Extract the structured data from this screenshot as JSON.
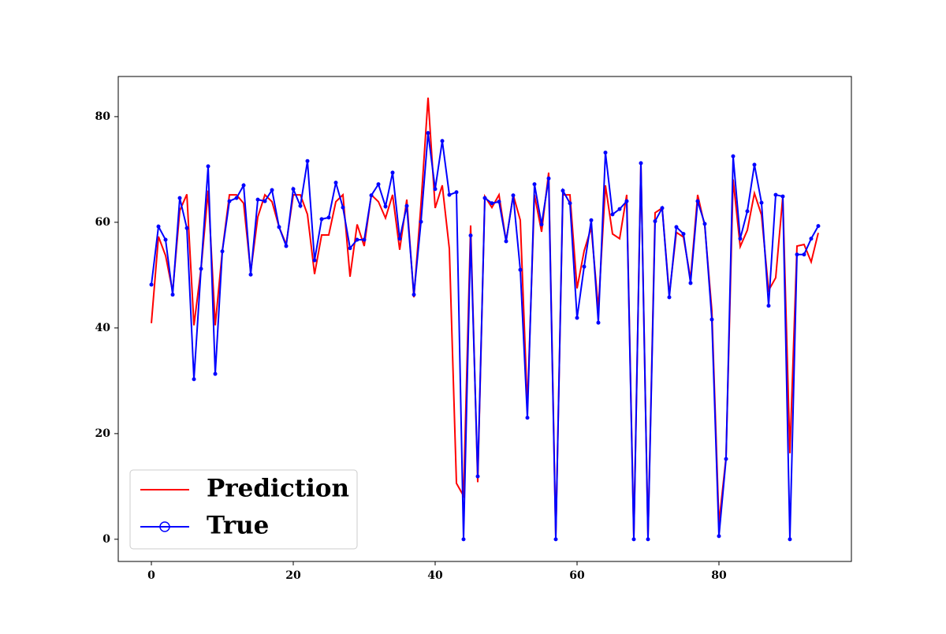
{
  "chart_data": {
    "type": "line",
    "x": [
      0,
      1,
      2,
      3,
      4,
      5,
      6,
      7,
      8,
      9,
      10,
      11,
      12,
      13,
      14,
      15,
      16,
      17,
      18,
      19,
      20,
      21,
      22,
      23,
      24,
      25,
      26,
      27,
      28,
      29,
      30,
      31,
      32,
      33,
      34,
      35,
      36,
      37,
      38,
      39,
      40,
      41,
      42,
      43,
      44,
      45,
      46,
      47,
      48,
      49,
      50,
      51,
      52,
      53,
      54,
      55,
      56,
      57,
      58,
      59,
      60,
      61,
      62,
      63,
      64,
      65,
      66,
      67,
      68,
      69,
      70,
      71,
      72,
      73,
      74,
      75,
      76,
      77,
      78,
      79,
      80,
      81,
      82,
      83,
      84,
      85,
      86,
      87,
      88,
      89,
      90,
      91,
      92,
      93,
      94
    ],
    "series": [
      {
        "name": "Prediction",
        "color": "#ff0000",
        "marker": false,
        "values": [
          40.9,
          57.3,
          53.7,
          46.9,
          62.2,
          65.3,
          40.5,
          51.2,
          66.0,
          40.5,
          54.6,
          65.2,
          65.2,
          63.6,
          50.6,
          61.0,
          65.2,
          63.9,
          59.1,
          55.8,
          65.2,
          65.2,
          61.5,
          50.2,
          57.6,
          57.6,
          63.9,
          65.2,
          49.7,
          59.6,
          55.5,
          65.2,
          63.9,
          60.8,
          65.2,
          54.8,
          64.3,
          45.8,
          63.4,
          83.6,
          62.7,
          67.0,
          55.0,
          10.6,
          8.2,
          59.4,
          10.8,
          64.9,
          62.8,
          65.2,
          56.4,
          65.2,
          60.4,
          25.0,
          65.2,
          58.2,
          69.4,
          0.5,
          65.2,
          65.2,
          47.5,
          54.6,
          59.0,
          43.6,
          67.0,
          57.8,
          56.9,
          65.2,
          0.5,
          71.2,
          0.5,
          61.8,
          62.7,
          46.3,
          58.1,
          57.2,
          49.3,
          65.2,
          59.3,
          43.3,
          3.0,
          15.5,
          68.1,
          55.4,
          58.5,
          65.5,
          61.4,
          47.1,
          49.5,
          64.9,
          16.3,
          55.5,
          55.8,
          52.5,
          58.0
        ]
      },
      {
        "name": "True",
        "color": "#0000ff",
        "marker": true,
        "values": [
          48.2,
          59.2,
          56.7,
          46.3,
          64.6,
          58.9,
          30.3,
          51.2,
          70.6,
          31.3,
          54.5,
          64.0,
          64.6,
          67.0,
          50.1,
          64.3,
          64.0,
          66.1,
          59.1,
          55.5,
          66.3,
          63.1,
          71.6,
          52.8,
          60.6,
          60.9,
          67.5,
          62.8,
          55.1,
          56.7,
          56.7,
          65.1,
          67.2,
          63.0,
          69.4,
          56.9,
          63.1,
          46.3,
          60.1,
          76.9,
          66.3,
          75.4,
          65.2,
          65.7,
          0,
          57.5,
          11.9,
          64.6,
          63.6,
          63.9,
          56.4,
          65.1,
          51.0,
          23.0,
          67.2,
          59.6,
          68.3,
          0,
          66.0,
          63.6,
          41.9,
          51.6,
          60.4,
          41.0,
          73.2,
          61.5,
          62.5,
          64.0,
          0,
          71.2,
          0,
          60.2,
          62.7,
          45.8,
          59.1,
          57.8,
          48.5,
          64.0,
          59.7,
          41.6,
          0.6,
          15.2,
          72.5,
          56.9,
          62.1,
          70.9,
          63.7,
          44.2,
          65.2,
          64.9,
          0,
          53.9,
          53.9,
          56.9,
          59.3
        ]
      }
    ],
    "xlim": [
      -4.67,
      98.67
    ],
    "ylim": [
      -4.2,
      87.6
    ],
    "xticks": [
      0,
      20,
      40,
      60,
      80
    ],
    "yticks": [
      0,
      20,
      40,
      60,
      80
    ],
    "legend": "lower left"
  }
}
